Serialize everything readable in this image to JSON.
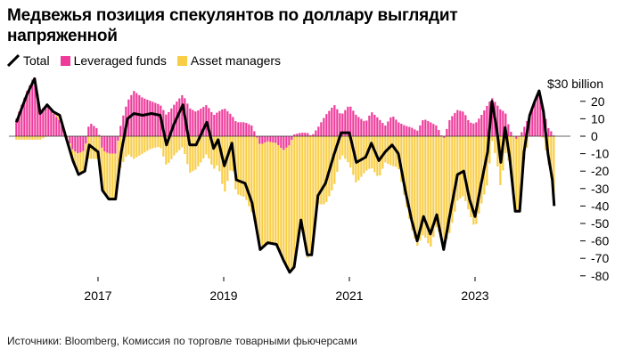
{
  "title": "Медвежья позиция спекулянтов по доллару выглядит напряженной",
  "source": "Источники: Bloomberg, Комиссия по торговле товарными фьючерсами",
  "chart_data": {
    "type": "bar",
    "title": "Медвежья позиция спекулянтов по доллару выглядит напряженной",
    "ylabel": "$30 billion",
    "unit_label": "$30 billion",
    "ylim": [
      -80,
      30
    ],
    "xlim": [
      2015.7,
      2024.26
    ],
    "yticks": [
      "20",
      "10",
      "0",
      "-10",
      "-20",
      "-30",
      "-40",
      "-50",
      "-60",
      "-70",
      "-80"
    ],
    "ytick_values": [
      20,
      10,
      0,
      -10,
      -20,
      -30,
      -40,
      -50,
      -60,
      -70,
      -80
    ],
    "xticks": [
      "2017",
      "2019",
      "2021",
      "2023"
    ],
    "xtick_values": [
      2017,
      2019,
      2021,
      2023
    ],
    "legend": [
      "Total",
      "Leveraged funds",
      "Asset managers"
    ],
    "legend_position": "top-left",
    "colors": {
      "total": "#000000",
      "leveraged": "#ee3a9b",
      "asset": "#f9cd45"
    },
    "x": [
      2015.7,
      2015.87,
      2015.99,
      2016.08,
      2016.19,
      2016.29,
      2016.39,
      2016.5,
      2016.6,
      2016.69,
      2016.79,
      2016.86,
      2017.0,
      2017.07,
      2017.17,
      2017.28,
      2017.37,
      2017.47,
      2017.57,
      2017.71,
      2017.85,
      2017.99,
      2018.09,
      2018.21,
      2018.35,
      2018.46,
      2018.56,
      2018.73,
      2018.84,
      2018.91,
      2019.01,
      2019.13,
      2019.2,
      2019.34,
      2019.45,
      2019.58,
      2019.7,
      2019.84,
      2019.95,
      2020.05,
      2020.12,
      2020.23,
      2020.33,
      2020.4,
      2020.5,
      2020.62,
      2020.76,
      2020.87,
      2021.0,
      2021.11,
      2021.26,
      2021.35,
      2021.47,
      2021.57,
      2021.68,
      2021.78,
      2021.89,
      2021.99,
      2022.08,
      2022.18,
      2022.29,
      2022.39,
      2022.5,
      2022.6,
      2022.72,
      2022.82,
      2022.91,
      2023.0,
      2023.1,
      2023.2,
      2023.27,
      2023.35,
      2023.41,
      2023.48,
      2023.55,
      2023.64,
      2023.71,
      2023.78,
      2023.87,
      2023.95,
      2024.02,
      2024.09,
      2024.16,
      2024.23,
      2024.26
    ],
    "series": [
      {
        "name": "Total",
        "type": "line",
        "values": [
          8,
          24,
          33,
          13,
          18,
          14,
          12,
          -2,
          -14,
          -22,
          -20,
          -5,
          -9,
          -31,
          -36,
          -36,
          -9,
          10,
          13,
          12,
          13,
          12,
          -5,
          7,
          18,
          -5,
          -5,
          8,
          -7,
          -2,
          -17,
          -4,
          -25,
          -27,
          -38,
          -65,
          -61,
          -62,
          -71,
          -78,
          -75,
          -48,
          -68,
          -68,
          -34,
          -27,
          -10,
          2,
          2,
          -15,
          -12,
          -4,
          -14,
          -9,
          -5,
          -10,
          -31,
          -48,
          -60,
          -46,
          -56,
          -45,
          -65,
          -45,
          -22,
          -20,
          -36,
          -46,
          -27,
          -9,
          20,
          3,
          -15,
          5,
          -12,
          -43,
          -43,
          -9,
          12,
          20,
          26,
          14,
          -10,
          -25,
          -40
        ]
      },
      {
        "name": "Leveraged funds",
        "type": "bar",
        "values": [
          10,
          26,
          35,
          15,
          18,
          13,
          9,
          0,
          -8,
          -10,
          -8,
          8,
          4,
          -8,
          -10,
          -10,
          8,
          20,
          26,
          22,
          20,
          18,
          12,
          18,
          24,
          16,
          14,
          18,
          12,
          14,
          16,
          12,
          8,
          8,
          6,
          -5,
          -3,
          -4,
          -8,
          -5,
          1,
          2,
          2,
          0,
          5,
          12,
          18,
          12,
          18,
          12,
          8,
          14,
          10,
          6,
          12,
          8,
          6,
          5,
          3,
          10,
          8,
          6,
          -2,
          10,
          15,
          14,
          8,
          7,
          12,
          18,
          22,
          18,
          15,
          14,
          4,
          -2,
          0,
          5,
          12,
          20,
          26,
          15,
          5,
          2,
          0
        ]
      },
      {
        "name": "Asset managers",
        "type": "bar",
        "values": [
          -2,
          -2,
          -2,
          -2,
          0,
          1,
          3,
          -2,
          -6,
          -12,
          -12,
          -13,
          -13,
          -23,
          -26,
          -26,
          -17,
          -10,
          -13,
          -10,
          -7,
          -6,
          -17,
          -11,
          -6,
          -21,
          -19,
          -10,
          -19,
          -16,
          -33,
          -16,
          -33,
          -35,
          -44,
          -60,
          -58,
          -58,
          -63,
          -73,
          -76,
          -50,
          -70,
          -68,
          -39,
          -39,
          -28,
          -10,
          -16,
          -27,
          -20,
          -18,
          -24,
          -15,
          -17,
          -18,
          -37,
          -53,
          -63,
          -56,
          -64,
          -51,
          -63,
          -55,
          -37,
          -34,
          -44,
          -53,
          -39,
          -27,
          -2,
          -15,
          -30,
          -9,
          -16,
          -41,
          -43,
          -14,
          0,
          0,
          0,
          -1,
          -15,
          -27,
          -40
        ]
      }
    ]
  }
}
